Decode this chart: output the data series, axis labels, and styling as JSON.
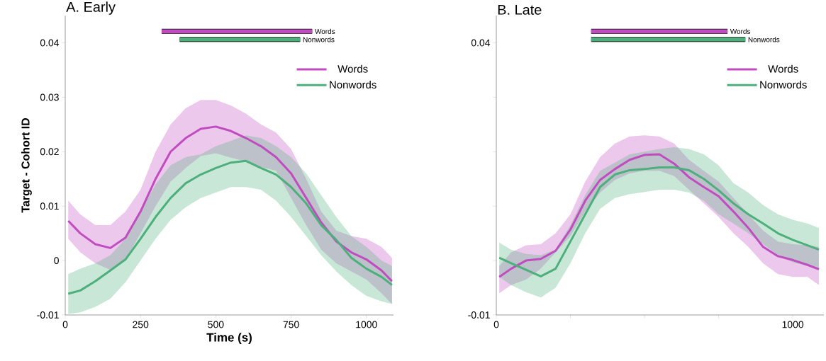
{
  "chart_data": [
    {
      "type": "line",
      "title": "A. Early",
      "xlabel": "Time (s)",
      "ylabel": "Target - Cohort ID",
      "series": [
        {
          "name": "Words",
          "color": "#c04cc0",
          "x": [
            10,
            50,
            100,
            150,
            200,
            250,
            300,
            350,
            400,
            450,
            500,
            550,
            600,
            650,
            700,
            750,
            800,
            850,
            900,
            950,
            1000,
            1050,
            1085
          ],
          "values": [
            0.0073,
            0.005,
            0.003,
            0.0023,
            0.0042,
            0.009,
            0.015,
            0.02,
            0.0225,
            0.0242,
            0.0246,
            0.0238,
            0.0225,
            0.021,
            0.019,
            0.016,
            0.0115,
            0.007,
            0.0035,
            0.0015,
            0.0002,
            -0.0018,
            -0.0038
          ],
          "upper": [
            0.011,
            0.0085,
            0.0065,
            0.0065,
            0.009,
            0.013,
            0.02,
            0.025,
            0.028,
            0.0295,
            0.0295,
            0.0285,
            0.027,
            0.025,
            0.0235,
            0.0205,
            0.015,
            0.009,
            0.0055,
            0.0045,
            0.004,
            0.0025,
            0.0005
          ],
          "lower": [
            0.004,
            0.0015,
            -0.0005,
            -0.0017,
            0.0,
            0.005,
            0.01,
            0.0145,
            0.017,
            0.0192,
            0.0197,
            0.0189,
            0.0182,
            0.0172,
            0.0165,
            0.0115,
            0.0065,
            0.002,
            -0.0005,
            -0.002,
            -0.0035,
            -0.006,
            -0.008
          ]
        },
        {
          "name": "Nonwords",
          "color": "#4daf7c",
          "x": [
            10,
            50,
            100,
            150,
            200,
            250,
            300,
            350,
            400,
            450,
            500,
            550,
            600,
            650,
            700,
            750,
            800,
            850,
            900,
            950,
            1000,
            1050,
            1085
          ],
          "values": [
            -0.0061,
            -0.0055,
            -0.0038,
            -0.0018,
            0.0002,
            0.004,
            0.008,
            0.0115,
            0.0142,
            0.0158,
            0.017,
            0.018,
            0.0183,
            0.017,
            0.0158,
            0.0135,
            0.0105,
            0.0065,
            0.0038,
            0.0005,
            -0.0015,
            -0.003,
            -0.0045
          ],
          "upper": [
            -0.0025,
            -0.0015,
            -0.0005,
            0.001,
            0.004,
            0.009,
            0.014,
            0.0175,
            0.019,
            0.0195,
            0.021,
            0.022,
            0.023,
            0.0225,
            0.021,
            0.019,
            0.016,
            0.012,
            0.008,
            0.0045,
            0.0025,
            0.0,
            -0.001
          ],
          "lower": [
            -0.0098,
            -0.0095,
            -0.0085,
            -0.007,
            -0.004,
            0.0,
            0.004,
            0.0075,
            0.0098,
            0.0115,
            0.0125,
            0.0135,
            0.0135,
            0.013,
            0.011,
            0.008,
            0.0045,
            0.001,
            -0.002,
            -0.0045,
            -0.0065,
            -0.0075,
            -0.008
          ]
        },
        {
          "name": "Words",
          "color": "#c04cc0",
          "type": "line",
          "x": [
            320,
            820
          ],
          "values": [
            0.0421,
            0.0421
          ]
        },
        {
          "name": "Nonwords",
          "color": "#4daf7c",
          "type": "line",
          "x": [
            380,
            780
          ],
          "values": [
            0.0406,
            0.0406
          ]
        }
      ],
      "xlim": [
        0,
        1090
      ],
      "ylim": [
        -0.01,
        0.045
      ],
      "xticks": [
        0,
        250,
        500,
        750,
        1000
      ],
      "yticks": [
        -0.01,
        0,
        0.01,
        0.02,
        0.03,
        0.04
      ],
      "legend": "top right",
      "grid": false,
      "line_style": "solid"
    },
    {
      "type": "line",
      "title": "B. Late",
      "series": [
        {
          "name": "Words",
          "color": "#c04cc0",
          "x": [
            10,
            50,
            100,
            150,
            200,
            250,
            300,
            350,
            400,
            450,
            500,
            550,
            600,
            650,
            700,
            750,
            800,
            850,
            900,
            950,
            1000,
            1050,
            1088
          ],
          "values": [
            -0.003,
            -0.0015,
            0.0,
            0.0003,
            0.0018,
            0.0057,
            0.011,
            0.0148,
            0.0168,
            0.0185,
            0.0194,
            0.0195,
            0.0178,
            0.0153,
            0.0135,
            0.0118,
            0.009,
            0.006,
            0.0025,
            0.0008,
            0.0001,
            -0.0008,
            -0.0016
          ],
          "upper": [
            -0.001,
            0.0015,
            0.0028,
            0.003,
            0.005,
            0.0085,
            0.0145,
            0.019,
            0.0215,
            0.0228,
            0.023,
            0.0228,
            0.0215,
            0.0185,
            0.0165,
            0.0145,
            0.0115,
            0.0085,
            0.0055,
            0.0035,
            0.003,
            0.0028,
            0.0025
          ],
          "lower": [
            -0.006,
            -0.0045,
            -0.0035,
            -0.0015,
            0.0015,
            0.0045,
            0.009,
            0.0125,
            0.0148,
            0.016,
            0.0165,
            0.0165,
            0.0155,
            0.013,
            0.0105,
            0.008,
            0.005,
            0.0025,
            -0.0005,
            -0.0025,
            -0.003,
            -0.003,
            -0.0045
          ]
        },
        {
          "name": "Nonwords",
          "color": "#4daf7c",
          "x": [
            10,
            50,
            100,
            150,
            200,
            250,
            300,
            350,
            400,
            450,
            500,
            550,
            600,
            650,
            700,
            750,
            800,
            850,
            900,
            950,
            1000,
            1050,
            1088
          ],
          "values": [
            0.0005,
            -0.0005,
            -0.0017,
            -0.0029,
            -0.0015,
            0.0035,
            0.0085,
            0.0135,
            0.0158,
            0.0166,
            0.0168,
            0.0171,
            0.0171,
            0.0166,
            0.015,
            0.0129,
            0.0105,
            0.0085,
            0.0068,
            0.005,
            0.0038,
            0.0028,
            0.002
          ],
          "upper": [
            0.0033,
            0.002,
            0.0012,
            0.001,
            0.002,
            0.0065,
            0.012,
            0.0165,
            0.018,
            0.0195,
            0.02,
            0.0205,
            0.0208,
            0.0205,
            0.0195,
            0.0175,
            0.0142,
            0.0125,
            0.0102,
            0.0085,
            0.0075,
            0.0068,
            0.006
          ],
          "lower": [
            -0.003,
            -0.0045,
            -0.0058,
            -0.0068,
            -0.005,
            -0.0005,
            0.005,
            0.0095,
            0.0115,
            0.0122,
            0.0126,
            0.013,
            0.013,
            0.0125,
            0.011,
            0.0085,
            0.0068,
            0.005,
            0.003,
            0.001,
            -0.0003,
            -0.001,
            -0.0016
          ]
        },
        {
          "name": "Words",
          "color": "#c04cc0",
          "type": "line",
          "x": [
            320,
            780
          ],
          "values": [
            0.0421,
            0.0421
          ]
        },
        {
          "name": "Nonwords",
          "color": "#4daf7c",
          "type": "line",
          "x": [
            320,
            840
          ],
          "values": [
            0.0406,
            0.0406
          ]
        }
      ],
      "xlim": [
        0,
        1105
      ],
      "ylim": [
        -0.01,
        0.045
      ],
      "xticks": [
        0,
        {
          "value": 250,
          "label": null
        },
        {
          "value": 500,
          "label": null
        },
        {
          "value": 750,
          "label": null
        },
        1000
      ],
      "yticks": [
        -0.01,
        {
          "value": 0,
          "label": null
        },
        {
          "value": 0.01,
          "label": null
        },
        {
          "value": 0.02,
          "label": null
        },
        {
          "value": 0.03,
          "label": null
        },
        0.04
      ],
      "legend": "top right",
      "grid": false,
      "line_style": "solid"
    }
  ]
}
